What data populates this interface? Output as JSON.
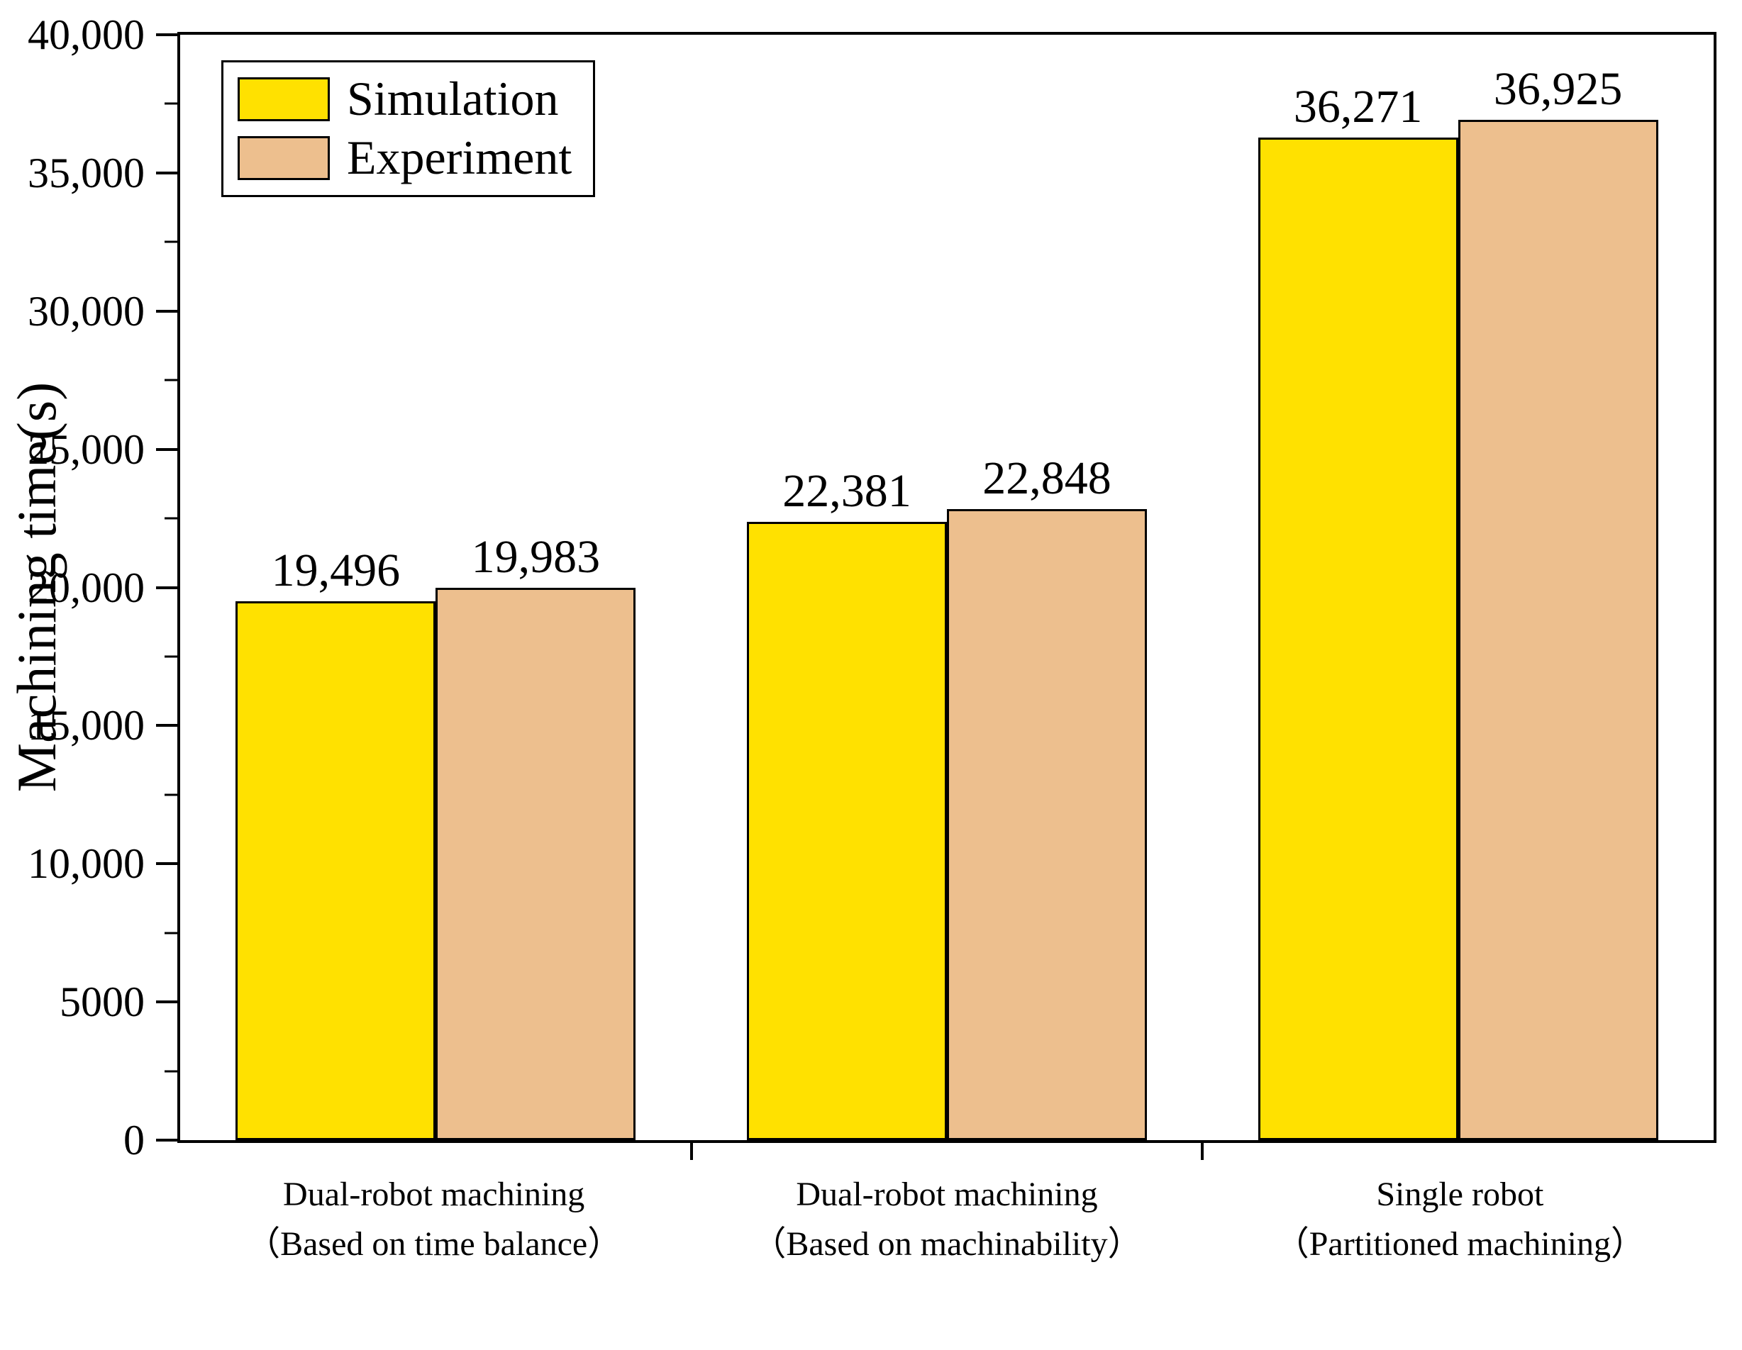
{
  "chart_data": {
    "type": "bar",
    "title": "",
    "ylabel": "Machining time(s)",
    "xlabel": "",
    "ylim": [
      0,
      40000
    ],
    "ytick_step": 5000,
    "yticks": [
      "0",
      "5000",
      "10,000",
      "15,000",
      "20,000",
      "25,000",
      "30,000",
      "35,000",
      "40,000"
    ],
    "grid": false,
    "legend_position": "top-left",
    "categories": [
      {
        "line1": "Dual-robot machining",
        "line2": "（Based on time balance）"
      },
      {
        "line1": "Dual-robot machining",
        "line2": "（Based on machinability）"
      },
      {
        "line1": "Single robot",
        "line2": "（Partitioned machining）"
      }
    ],
    "series": [
      {
        "name": "Simulation",
        "color": "#FFE100",
        "values": [
          19496,
          22381,
          36271
        ],
        "labels": [
          "19,496",
          "22,381",
          "36,271"
        ]
      },
      {
        "name": "Experiment",
        "color": "#EDBF8E",
        "values": [
          19983,
          22848,
          36925
        ],
        "labels": [
          "19,983",
          "22,848",
          "36,925"
        ]
      }
    ]
  },
  "colors": {
    "axis": "#000000",
    "background": "#FFFFFF",
    "simulation": "#FFE100",
    "experiment": "#EDBF8E"
  }
}
